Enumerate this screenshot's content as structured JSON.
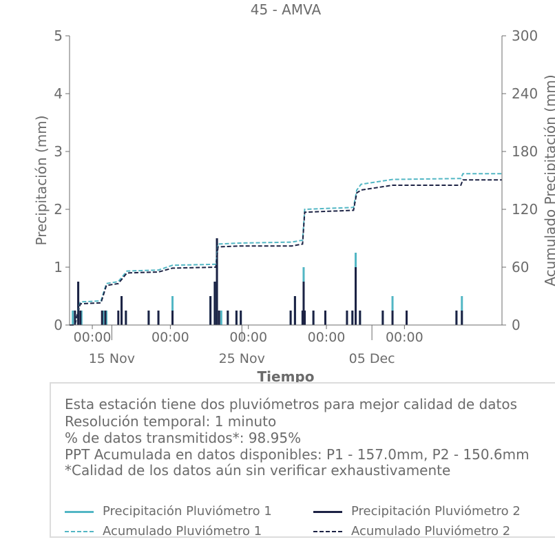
{
  "chart_data": {
    "type": "line",
    "title": "45 - AMVA",
    "xlabel": "Tiempo",
    "ylabel_left": "Precipitación (mm)",
    "ylabel_right": "Acumulado Precipitación (mm)",
    "ylim_left": [
      0,
      5
    ],
    "ylim_right": [
      0,
      300
    ],
    "yticks_left": [
      "0",
      "1",
      "2",
      "3",
      "4",
      "5"
    ],
    "yticks_right": [
      "0",
      "60",
      "120",
      "180",
      "240",
      "300"
    ],
    "xlim": [
      "2023-11-11T18:00",
      "2023-12-15T00:00"
    ],
    "x_major_ticks": [
      {
        "x": "2023-11-15T00:00",
        "time": "00:00",
        "date": "15 Nov"
      },
      {
        "x": "2023-11-25T00:00",
        "time": "00:00",
        "date": "25 Nov"
      },
      {
        "x": "2023-12-05T00:00",
        "time": "00:00",
        "date": "05 Dec"
      }
    ],
    "x_minor_ticks": [
      {
        "x": "2023-11-13T12:00",
        "time": "00:00"
      },
      {
        "x": "2023-11-19T12:00",
        "time": "00:00"
      },
      {
        "x": "2023-11-25T12:00",
        "time": "00:00"
      },
      {
        "x": "2023-12-01T12:00",
        "time": "00:00"
      },
      {
        "x": "2023-12-07T12:00",
        "time": "00:00"
      }
    ],
    "colors": {
      "p1": "#52b6c4",
      "p2": "#1c2244",
      "axis": "#6b6b6b"
    },
    "series": [
      {
        "name": "Precipitación Pluviómetro 1",
        "axis": "left",
        "style": "bars",
        "points": [
          [
            "2023-11-12T00:00",
            0.25
          ],
          [
            "2023-11-12T10:00",
            0.75
          ],
          [
            "2023-11-12T16:00",
            0.25
          ],
          [
            "2023-11-14T08:00",
            0.25
          ],
          [
            "2023-11-14T14:00",
            0.25
          ],
          [
            "2023-11-15T18:00",
            0.5
          ],
          [
            "2023-11-16T02:00",
            0.25
          ],
          [
            "2023-11-17T20:00",
            0.25
          ],
          [
            "2023-11-18T14:00",
            0.25
          ],
          [
            "2023-11-19T16:00",
            0.5
          ],
          [
            "2023-11-22T14:00",
            0.5
          ],
          [
            "2023-11-22T22:00",
            0.75
          ],
          [
            "2023-11-23T02:00",
            1.5
          ],
          [
            "2023-11-23T10:00",
            0.25
          ],
          [
            "2023-11-23T22:00",
            0.25
          ],
          [
            "2023-11-24T14:00",
            0.25
          ],
          [
            "2023-11-24T22:00",
            0.25
          ],
          [
            "2023-11-28T18:00",
            0.25
          ],
          [
            "2023-11-29T02:00",
            0.5
          ],
          [
            "2023-11-29T16:00",
            0.25
          ],
          [
            "2023-11-29T18:00",
            1.0
          ],
          [
            "2023-11-29T20:00",
            0.25
          ],
          [
            "2023-11-30T12:00",
            0.25
          ],
          [
            "2023-12-01T10:00",
            0.25
          ],
          [
            "2023-12-03T02:00",
            0.25
          ],
          [
            "2023-12-03T12:00",
            0.25
          ],
          [
            "2023-12-03T18:00",
            1.25
          ],
          [
            "2023-12-04T02:00",
            0.25
          ],
          [
            "2023-12-05T20:00",
            0.25
          ],
          [
            "2023-12-06T14:00",
            0.5
          ],
          [
            "2023-12-07T16:00",
            0.25
          ],
          [
            "2023-12-11T12:00",
            0.25
          ],
          [
            "2023-12-11T22:00",
            0.5
          ]
        ]
      },
      {
        "name": "Precipitación Pluviómetro 2",
        "axis": "left",
        "style": "bars",
        "points": [
          [
            "2023-11-12T04:00",
            0.25
          ],
          [
            "2023-11-12T10:00",
            0.75
          ],
          [
            "2023-11-12T14:00",
            0.25
          ],
          [
            "2023-11-14T06:00",
            0.25
          ],
          [
            "2023-11-14T12:00",
            0.25
          ],
          [
            "2023-11-15T12:00",
            0.25
          ],
          [
            "2023-11-15T18:00",
            0.5
          ],
          [
            "2023-11-16T02:00",
            0.25
          ],
          [
            "2023-11-17T20:00",
            0.25
          ],
          [
            "2023-11-18T14:00",
            0.25
          ],
          [
            "2023-11-19T16:00",
            0.25
          ],
          [
            "2023-11-22T14:00",
            0.5
          ],
          [
            "2023-11-22T22:00",
            0.75
          ],
          [
            "2023-11-23T02:00",
            1.5
          ],
          [
            "2023-11-23T06:00",
            0.25
          ],
          [
            "2023-11-23T22:00",
            0.25
          ],
          [
            "2023-11-24T14:00",
            0.25
          ],
          [
            "2023-11-24T22:00",
            0.25
          ],
          [
            "2023-11-28T18:00",
            0.25
          ],
          [
            "2023-11-29T02:00",
            0.5
          ],
          [
            "2023-11-29T16:00",
            0.25
          ],
          [
            "2023-11-29T18:00",
            0.75
          ],
          [
            "2023-11-29T20:00",
            0.25
          ],
          [
            "2023-11-30T12:00",
            0.25
          ],
          [
            "2023-12-01T10:00",
            0.25
          ],
          [
            "2023-12-03T02:00",
            0.25
          ],
          [
            "2023-12-03T12:00",
            0.25
          ],
          [
            "2023-12-03T18:00",
            1.0
          ],
          [
            "2023-12-04T02:00",
            0.25
          ],
          [
            "2023-12-05T20:00",
            0.25
          ],
          [
            "2023-12-06T14:00",
            0.25
          ],
          [
            "2023-12-07T16:00",
            0.25
          ],
          [
            "2023-12-11T12:00",
            0.25
          ],
          [
            "2023-12-11T22:00",
            0.25
          ]
        ]
      },
      {
        "name": "Acumulado Pluviómetro 1",
        "axis": "right",
        "style": "dashed",
        "points": [
          [
            "2023-11-11T18:00",
            0
          ],
          [
            "2023-11-12T04:00",
            0
          ],
          [
            "2023-11-12T08:00",
            10
          ],
          [
            "2023-11-12T14:00",
            24
          ],
          [
            "2023-11-14T04:00",
            25
          ],
          [
            "2023-11-14T14:00",
            43
          ],
          [
            "2023-11-15T12:00",
            45
          ],
          [
            "2023-11-16T04:00",
            56
          ],
          [
            "2023-11-18T14:00",
            57
          ],
          [
            "2023-11-19T16:00",
            62
          ],
          [
            "2023-11-23T00:00",
            63
          ],
          [
            "2023-11-23T04:00",
            84
          ],
          [
            "2023-11-24T20:00",
            85
          ],
          [
            "2023-11-28T20:00",
            86
          ],
          [
            "2023-11-29T16:00",
            88
          ],
          [
            "2023-11-29T20:00",
            120
          ],
          [
            "2023-12-03T14:00",
            122
          ],
          [
            "2023-12-03T20:00",
            140
          ],
          [
            "2023-12-04T04:00",
            146
          ],
          [
            "2023-12-06T14:00",
            151
          ],
          [
            "2023-12-11T20:00",
            152
          ],
          [
            "2023-12-12T00:00",
            157
          ],
          [
            "2023-12-15T00:00",
            157
          ]
        ]
      },
      {
        "name": "Acumulado Pluviómetro 2",
        "axis": "right",
        "style": "dashed",
        "points": [
          [
            "2023-11-11T18:00",
            0
          ],
          [
            "2023-11-12T04:00",
            0
          ],
          [
            "2023-11-12T08:00",
            10
          ],
          [
            "2023-11-12T14:00",
            22
          ],
          [
            "2023-11-14T04:00",
            23
          ],
          [
            "2023-11-14T14:00",
            41
          ],
          [
            "2023-11-15T12:00",
            43
          ],
          [
            "2023-11-16T04:00",
            54
          ],
          [
            "2023-11-18T14:00",
            55
          ],
          [
            "2023-11-19T16:00",
            59
          ],
          [
            "2023-11-23T00:00",
            60
          ],
          [
            "2023-11-23T04:00",
            81
          ],
          [
            "2023-11-24T20:00",
            82
          ],
          [
            "2023-11-28T20:00",
            82
          ],
          [
            "2023-11-29T16:00",
            84
          ],
          [
            "2023-11-29T20:00",
            117
          ],
          [
            "2023-12-03T14:00",
            119
          ],
          [
            "2023-12-03T20:00",
            137
          ],
          [
            "2023-12-04T04:00",
            140
          ],
          [
            "2023-12-06T14:00",
            145
          ],
          [
            "2023-12-11T20:00",
            145
          ],
          [
            "2023-12-12T00:00",
            150.6
          ],
          [
            "2023-12-15T00:00",
            150.6
          ]
        ]
      }
    ]
  },
  "info": {
    "lines": [
      "Esta estación tiene dos pluviómetros para mejor calidad de datos",
      "Resolución temporal: 1 minuto",
      "% de datos transmitidos*: 98.95%",
      "PPT Acumulada en datos disponibles: P1 - 157.0mm, P2 - 150.6mm",
      "*Calidad de los datos aún sin verificar exhaustivamente"
    ]
  },
  "legend": [
    {
      "label": "Precipitación Pluviómetro 1",
      "color": "#52b6c4",
      "style": "solid"
    },
    {
      "label": "Precipitación Pluviómetro 2",
      "color": "#1c2244",
      "style": "solid"
    },
    {
      "label": "Acumulado Pluviómetro 1",
      "color": "#52b6c4",
      "style": "dashed"
    },
    {
      "label": "Acumulado Pluviómetro 2",
      "color": "#1c2244",
      "style": "dashed"
    }
  ]
}
